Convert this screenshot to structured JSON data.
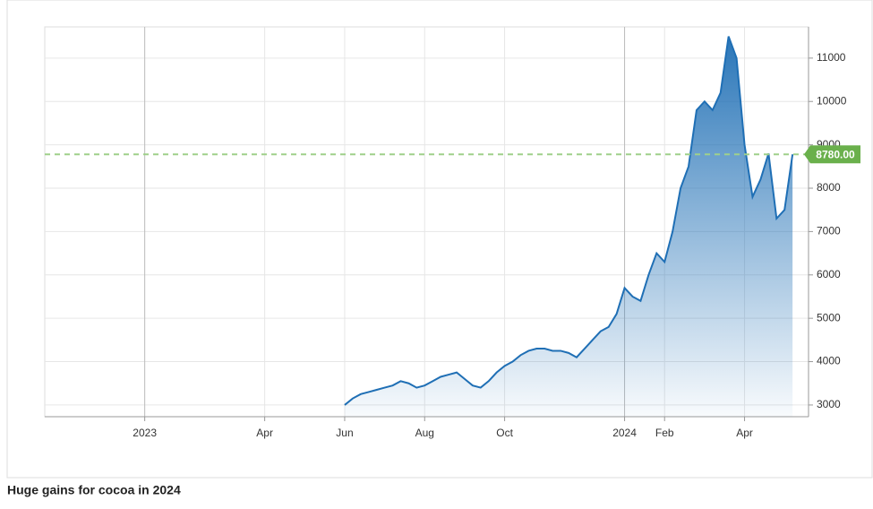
{
  "chart_data": {
    "type": "area",
    "caption": "Huge gains for cocoa in 2024",
    "x": [
      5,
      5.2,
      5.4,
      5.6,
      5.8,
      6,
      6.2,
      6.4,
      6.6,
      6.8,
      7,
      7.2,
      7.4,
      7.6,
      7.8,
      8,
      8.2,
      8.4,
      8.6,
      8.8,
      9,
      9.2,
      9.4,
      9.6,
      9.8,
      10,
      10.2,
      10.4,
      10.6,
      10.8,
      11,
      11.2,
      11.4,
      11.6,
      11.8,
      12,
      12.2,
      12.4,
      12.6,
      12.8,
      13,
      13.2,
      13.4,
      13.6,
      13.8,
      14,
      14.2,
      14.4,
      14.6,
      14.8,
      15,
      15.2,
      15.4,
      15.6,
      15.8,
      16,
      16.2
    ],
    "series": [
      {
        "color": "#1f6fb5",
        "values": [
          3000,
          3150,
          3250,
          3300,
          3350,
          3400,
          3450,
          3550,
          3500,
          3400,
          3450,
          3550,
          3650,
          3700,
          3750,
          3600,
          3450,
          3400,
          3550,
          3750,
          3900,
          4000,
          4150,
          4250,
          4300,
          4300,
          4250,
          4250,
          4200,
          4100,
          4300,
          4500,
          4700,
          4800,
          5100,
          5700,
          5500,
          5400,
          6000,
          6500,
          6300,
          7000,
          8000,
          8500,
          9800,
          10000,
          9800,
          10200,
          11500,
          11000,
          9000,
          7800,
          8200,
          8800,
          7300,
          7500,
          8780
        ]
      }
    ],
    "current": {
      "value": 8780,
      "label": "8780.00"
    },
    "xlim": [
      -2.5,
      16.6
    ],
    "xticks": [
      {
        "value": 0,
        "label": "2023"
      },
      {
        "value": 3,
        "label": "Apr"
      },
      {
        "value": 5,
        "label": "Jun"
      },
      {
        "value": 7,
        "label": "Aug"
      },
      {
        "value": 9,
        "label": "Oct"
      },
      {
        "value": 12,
        "label": "2024"
      },
      {
        "value": 13,
        "label": "Feb"
      },
      {
        "value": 15,
        "label": "Apr"
      }
    ],
    "ylim": [
      2730,
      11720
    ],
    "yticks": [
      3000,
      4000,
      5000,
      6000,
      7000,
      8000,
      9000,
      10000,
      11000
    ],
    "grid": true
  }
}
